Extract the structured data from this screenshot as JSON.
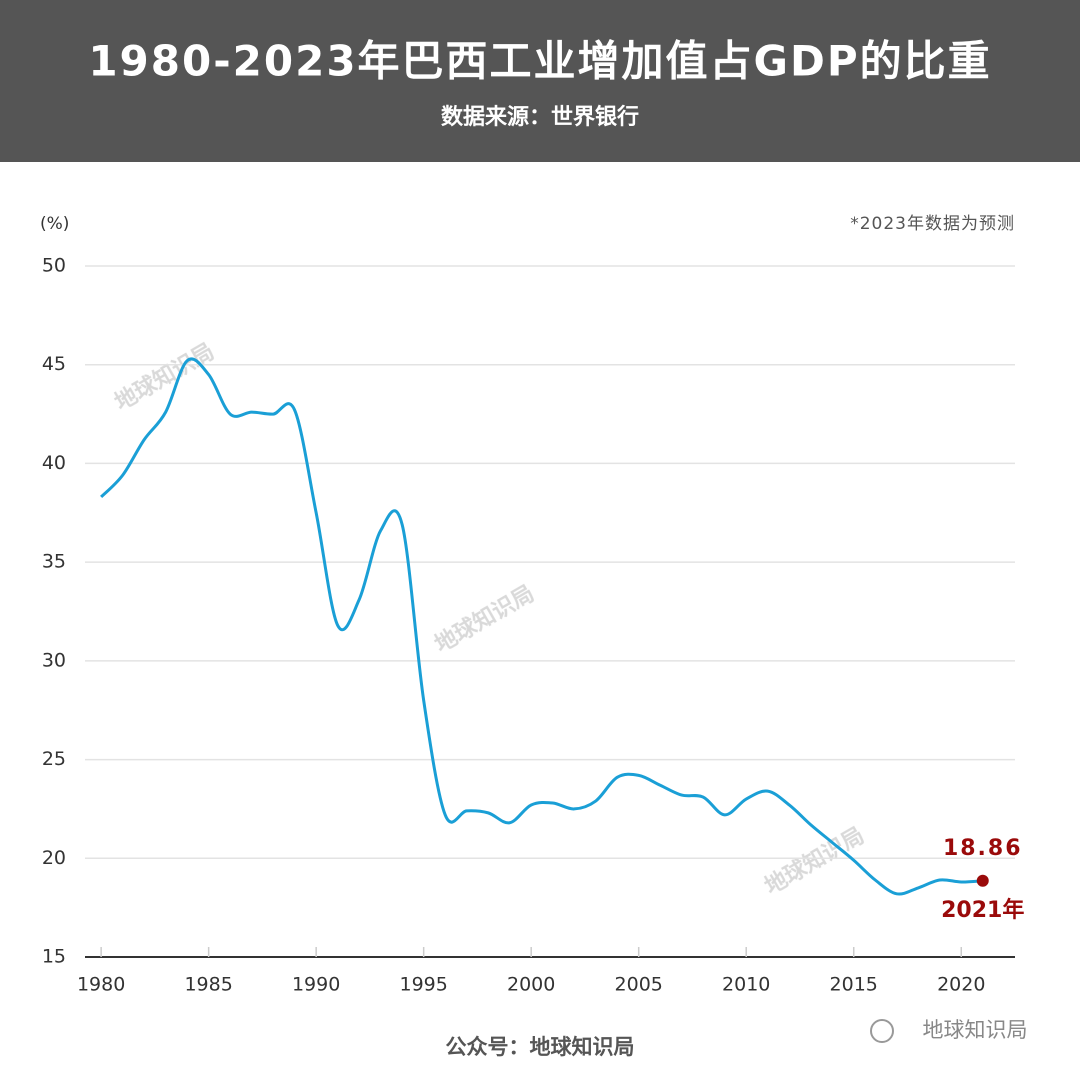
{
  "chart_data": {
    "type": "line",
    "title": "1980-2023年巴西工业增加值占GDP的比重",
    "subtitle": "数据来源：世界银行",
    "y_unit": "(%)",
    "note": "*2023年数据为预测",
    "footer": "公众号：地球知识局",
    "watermark": "地球知识局",
    "x": [
      1980,
      1981,
      1982,
      1983,
      1984,
      1985,
      1986,
      1987,
      1988,
      1989,
      1990,
      1991,
      1992,
      1993,
      1994,
      1995,
      1996,
      1997,
      1998,
      1999,
      2000,
      2001,
      2002,
      2003,
      2004,
      2005,
      2006,
      2007,
      2008,
      2009,
      2010,
      2011,
      2012,
      2013,
      2014,
      2015,
      2016,
      2017,
      2018,
      2019,
      2020,
      2021
    ],
    "series": [
      {
        "name": "工业增加值占GDP比重",
        "color": "#1a9fd6",
        "values": [
          38.3,
          39.4,
          41.2,
          42.6,
          45.2,
          44.5,
          42.5,
          42.6,
          42.5,
          42.7,
          37.5,
          31.8,
          33.1,
          36.6,
          36.9,
          28.0,
          22.2,
          22.4,
          22.3,
          21.8,
          22.7,
          22.8,
          22.5,
          22.9,
          24.1,
          24.2,
          23.7,
          23.2,
          23.1,
          22.2,
          23.0,
          23.4,
          22.7,
          21.7,
          20.8,
          19.9,
          18.9,
          18.2,
          18.5,
          18.9,
          18.8,
          18.86
        ]
      }
    ],
    "annotation": {
      "x": 2021,
      "y": 18.86,
      "label": "2021年",
      "color": "#9a0a0a"
    },
    "xlim": [
      1979.25,
      2022.5
    ],
    "xticks": [
      1980,
      1985,
      1990,
      1995,
      2000,
      2005,
      2010,
      2015,
      2020
    ],
    "ylim": [
      15,
      50
    ],
    "yticks": [
      15,
      20,
      25,
      30,
      35,
      40,
      45,
      50
    ],
    "grid": true
  }
}
